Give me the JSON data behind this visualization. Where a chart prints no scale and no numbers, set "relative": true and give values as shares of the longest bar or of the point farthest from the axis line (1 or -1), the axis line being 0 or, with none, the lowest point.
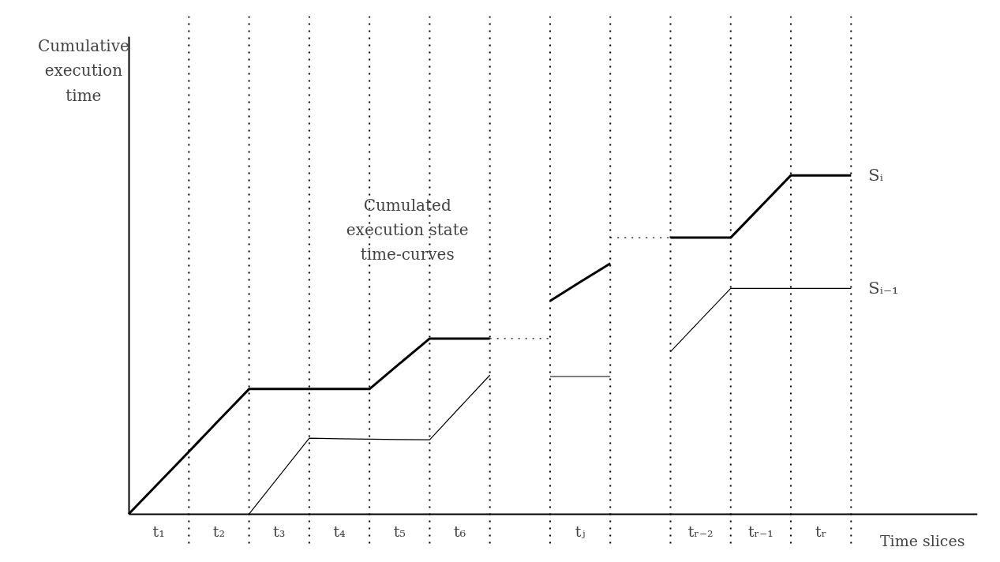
{
  "chart_data": {
    "type": "line",
    "relative": true,
    "xlabel": "Time slices",
    "annotations": [
      "Cumulative execution time",
      "Cumulated execution state time-curves"
    ],
    "categories": [
      null,
      "t₁",
      null,
      "t₂",
      null,
      "t₃",
      null,
      "t₄",
      null,
      "t₅",
      null,
      "t₆",
      null,
      null,
      null,
      "tⱼ",
      null,
      null,
      null,
      "tᵣ₋₂",
      null,
      "tᵣ₋₁",
      null,
      "tᵣ",
      null
    ],
    "tick_labels": "x",
    "grid": false,
    "legend": false,
    "marker": "none",
    "series": [
      {
        "name": "Sᵢ",
        "color": "#000000",
        "line_style": "solid",
        "values": [
          0,
          0.092,
          0.184,
          0.277,
          0.369,
          0.369,
          0.369,
          0.369,
          0.369,
          0.444,
          0.518,
          0.518,
          0.518,
          null,
          0.629,
          0.685,
          0.74,
          null,
          0.816,
          0.816,
          0.816,
          0.908,
          1.0,
          1.0,
          1.0
        ]
      },
      {
        "name": "Sᵢ₋₁",
        "color": "#000000",
        "line_style": "solid",
        "values": [
          null,
          null,
          null,
          null,
          0,
          0.112,
          0.224,
          0.222,
          0.221,
          0.22,
          0.219,
          0.315,
          0.41,
          null,
          0.406,
          0.406,
          0.406,
          null,
          0.479,
          0.573,
          0.666,
          0.666,
          0.666,
          0.666,
          0.666
        ]
      },
      {
        "color": "#000000",
        "line_style": "dotted",
        "values": [
          null,
          null,
          null,
          null,
          null,
          null,
          null,
          null,
          null,
          null,
          null,
          null,
          0.518,
          0.518,
          0.518,
          null,
          null,
          null,
          null,
          null,
          null,
          null,
          null,
          null,
          null
        ]
      },
      {
        "color": "#000000",
        "line_style": "dotted",
        "values": [
          null,
          null,
          null,
          null,
          null,
          null,
          null,
          null,
          null,
          null,
          null,
          null,
          null,
          null,
          null,
          null,
          0.816,
          0.816,
          0.816,
          null,
          null,
          null,
          null,
          null,
          null
        ]
      }
    ]
  }
}
